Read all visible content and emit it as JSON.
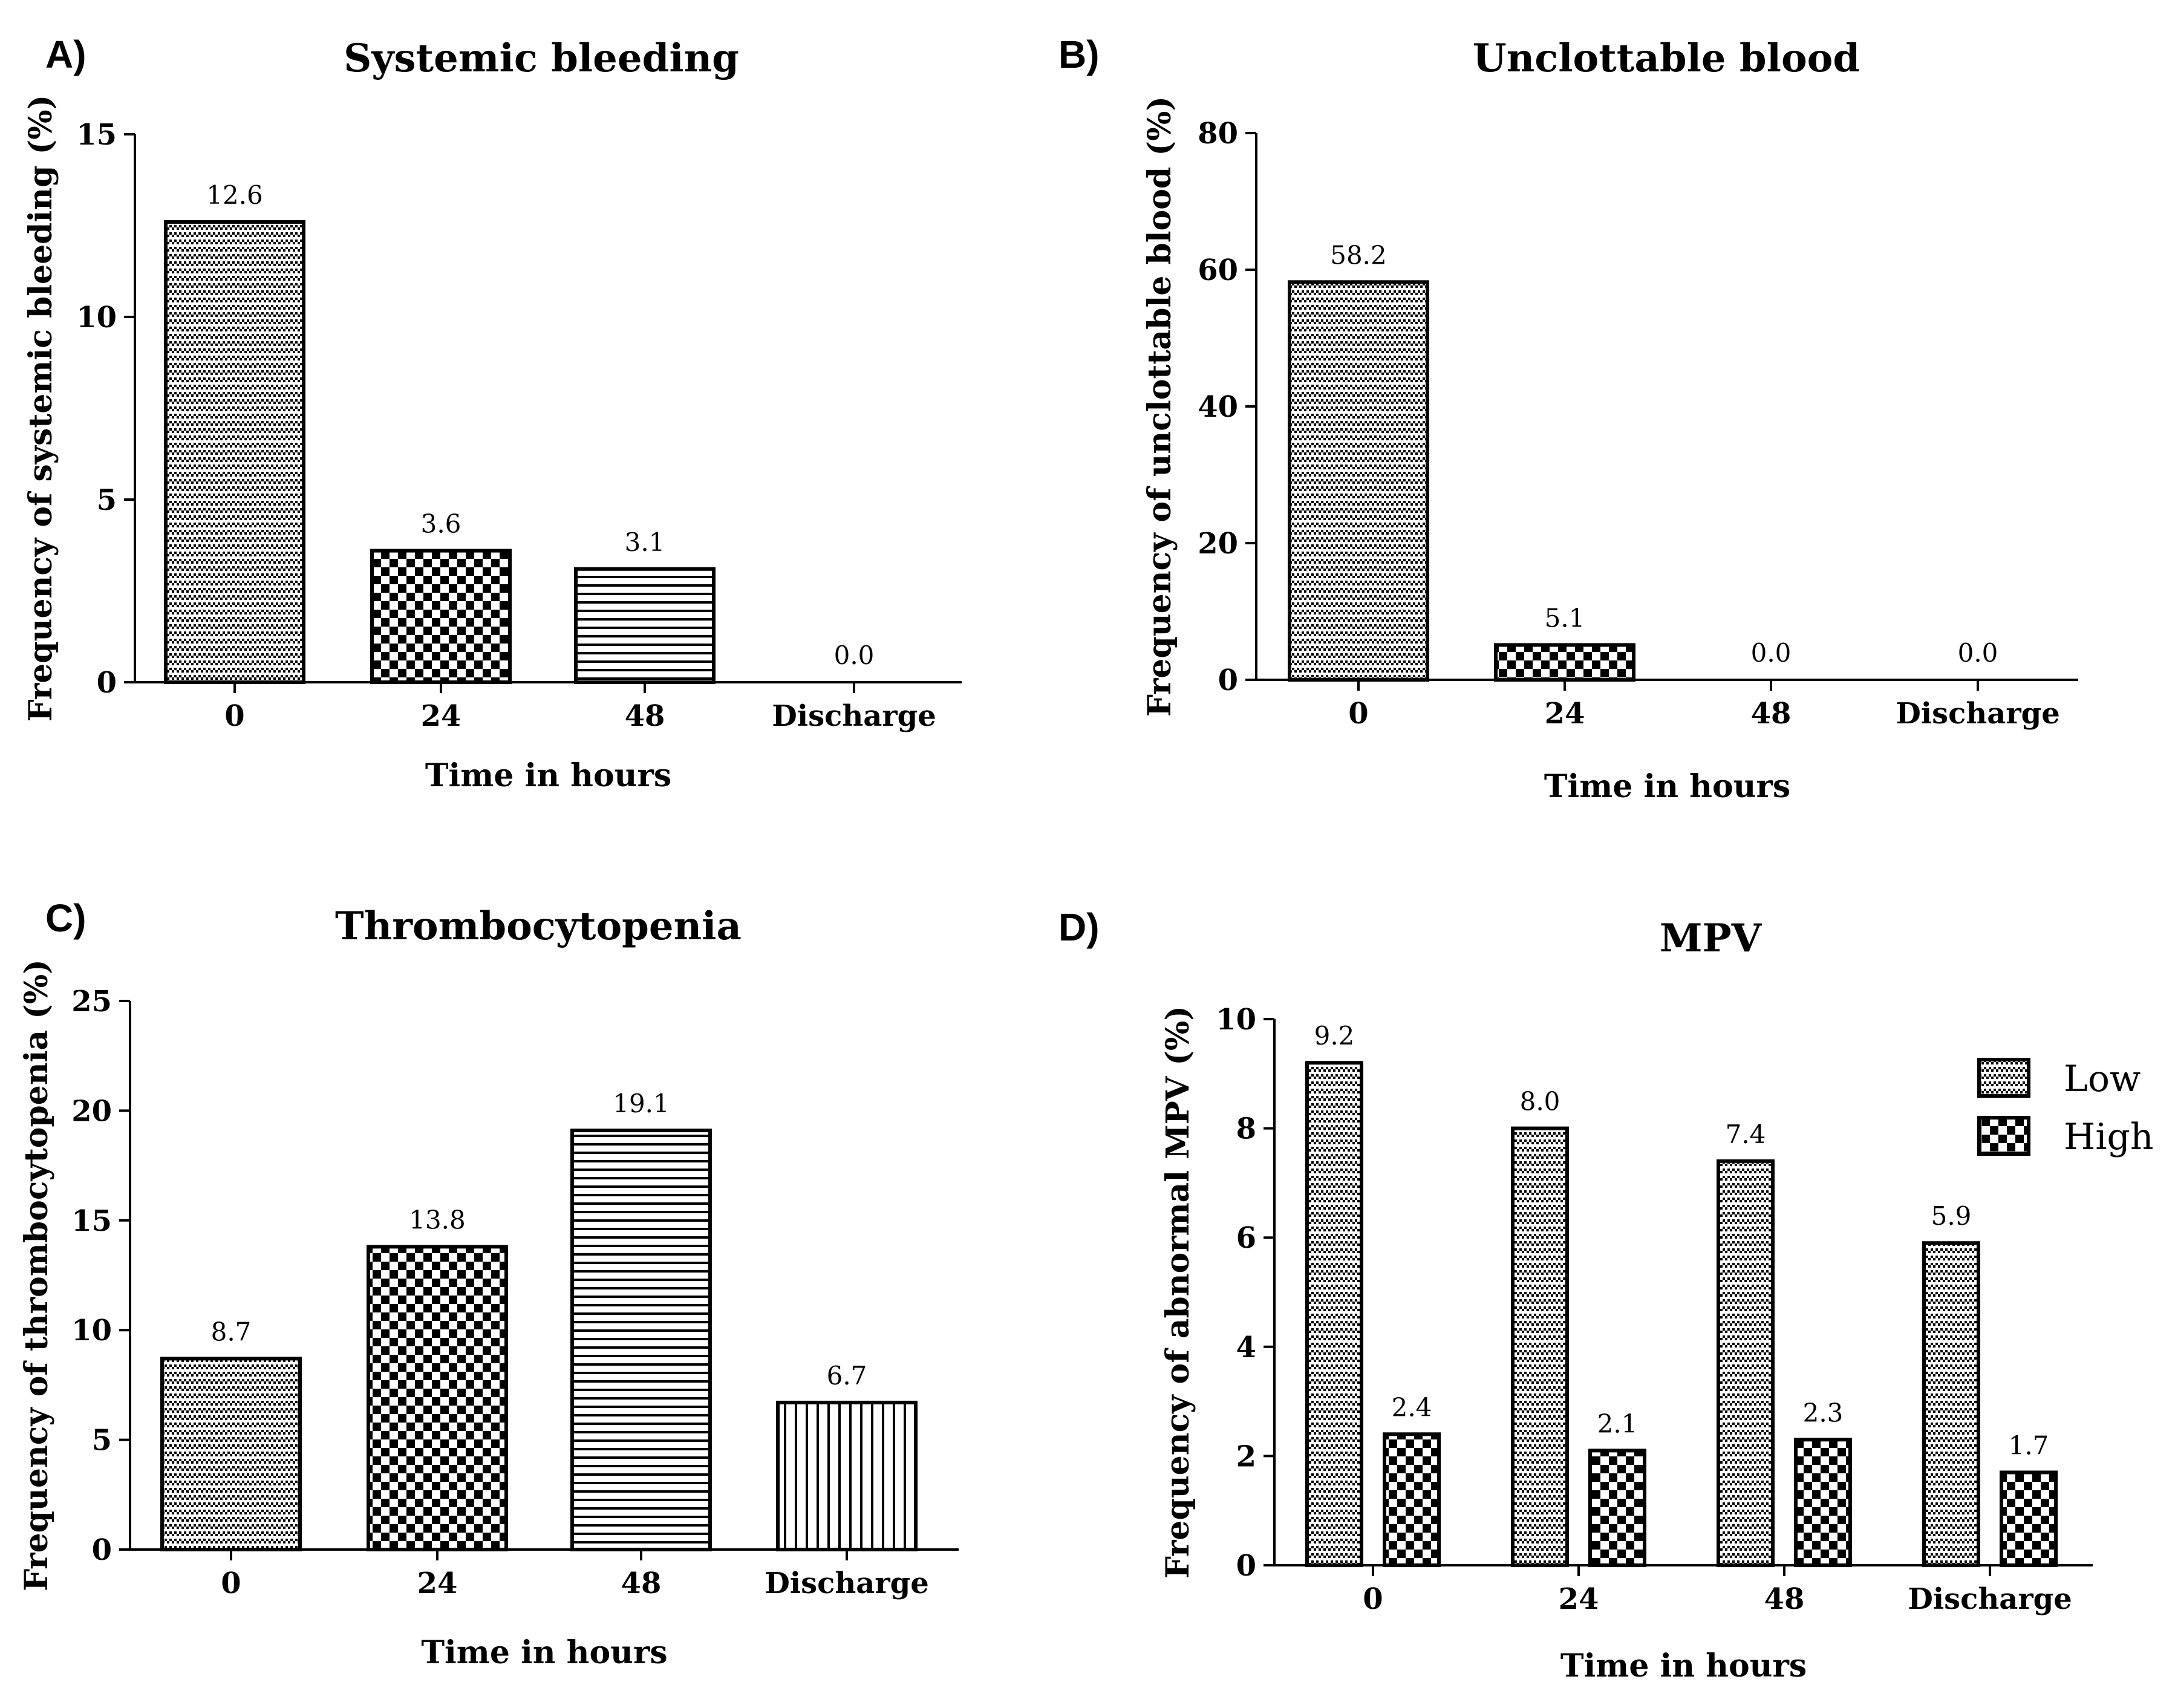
{
  "chart_data": [
    {
      "panel": "A)",
      "type": "bar",
      "title": "Systemic bleeding",
      "xlabel": "Time in hours",
      "ylabel": "Frequency of systemic bleeding (%)",
      "ylim": [
        0,
        15
      ],
      "yticks": [
        0,
        5,
        10,
        15
      ],
      "categories": [
        "0",
        "24",
        "48",
        "Discharge"
      ],
      "values": [
        12.6,
        3.6,
        3.1,
        0.0
      ],
      "data_labels": [
        "12.6",
        "3.6",
        "3.1",
        "0.0"
      ],
      "patterns": [
        "dense",
        "checker",
        "hlines",
        "none"
      ]
    },
    {
      "panel": "B)",
      "type": "bar",
      "title": "Unclottable blood",
      "xlabel": "Time in hours",
      "ylabel": "Frequency of unclottable blood (%)",
      "ylim": [
        0,
        80
      ],
      "yticks": [
        0,
        20,
        40,
        60,
        80
      ],
      "categories": [
        "0",
        "24",
        "48",
        "Discharge"
      ],
      "values": [
        58.2,
        5.1,
        0.0,
        0.0
      ],
      "data_labels": [
        "58.2",
        "5.1",
        "0.0",
        "0.0"
      ],
      "patterns": [
        "dense",
        "checker",
        "none",
        "none"
      ]
    },
    {
      "panel": "C)",
      "type": "bar",
      "title": "Thrombocytopenia",
      "xlabel": "Time in hours",
      "ylabel": "Frequency of thrombocytopenia (%)",
      "ylim": [
        0,
        25
      ],
      "yticks": [
        0,
        5,
        10,
        15,
        20,
        25
      ],
      "categories": [
        "0",
        "24",
        "48",
        "Discharge"
      ],
      "values": [
        8.7,
        13.8,
        19.1,
        6.7
      ],
      "data_labels": [
        "8.7",
        "13.8",
        "19.1",
        "6.7"
      ],
      "patterns": [
        "dense",
        "checker",
        "hlines",
        "vlines"
      ]
    },
    {
      "panel": "D)",
      "type": "bar",
      "title": "MPV",
      "xlabel": "Time in hours",
      "ylabel": "Frequency of abnormal MPV (%)",
      "ylim": [
        0,
        10
      ],
      "yticks": [
        0,
        2,
        4,
        6,
        8,
        10
      ],
      "categories": [
        "0",
        "24",
        "48",
        "Discharge"
      ],
      "series": [
        {
          "name": "Low",
          "values": [
            9.2,
            8.0,
            7.4,
            5.9
          ],
          "data_labels": [
            "9.2",
            "8.0",
            "7.4",
            "5.9"
          ],
          "pattern": "dense"
        },
        {
          "name": "High",
          "values": [
            2.4,
            2.1,
            2.3,
            1.7
          ],
          "data_labels": [
            "2.4",
            "2.1",
            "2.3",
            "1.7"
          ],
          "pattern": "checker"
        }
      ],
      "legend": "top-right"
    }
  ]
}
